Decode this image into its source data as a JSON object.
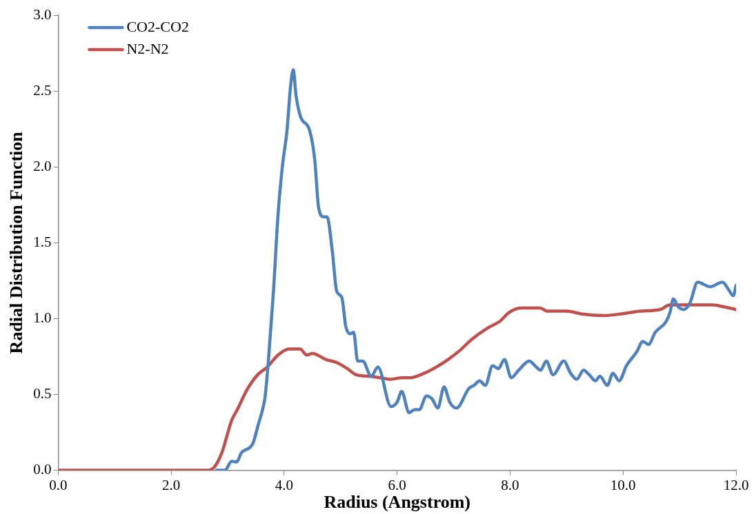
{
  "chart_data": {
    "type": "line",
    "xlabel": "Radius (Angstrom)",
    "ylabel": "Radial Distribution Function",
    "xlim": [
      0,
      12
    ],
    "xticks": [
      {
        "value": 0,
        "label": "0.0"
      },
      {
        "value": 2,
        "label": "2.0"
      },
      {
        "value": 4,
        "label": "4.0"
      },
      {
        "value": 6,
        "label": "6.0"
      },
      {
        "value": 8,
        "label": "8.0"
      },
      {
        "value": 10,
        "label": "10.0"
      },
      {
        "value": 12,
        "label": "12.0"
      }
    ],
    "ylim": [
      0,
      3
    ],
    "yticks": [
      {
        "value": 0,
        "label": "0.0"
      },
      {
        "value": 0.5,
        "label": "0.5"
      },
      {
        "value": 1,
        "label": "1.0"
      },
      {
        "value": 1.5,
        "label": "1.5"
      },
      {
        "value": 2,
        "label": "2.0"
      },
      {
        "value": 2.5,
        "label": "2.5"
      },
      {
        "value": 3,
        "label": "3.0"
      }
    ],
    "grid": false,
    "legend": "top left",
    "marker": "none",
    "line_style": "solid",
    "series": [
      {
        "name": "CO2-CO2",
        "color": "#4f81bd",
        "x": [
          2.8,
          2.95,
          3.07,
          3.16,
          3.24,
          3.39,
          3.45,
          3.54,
          3.61,
          3.66,
          3.72,
          3.81,
          3.89,
          3.97,
          4.05,
          4.11,
          4.16,
          4.21,
          4.29,
          4.45,
          4.54,
          4.61,
          4.7,
          4.76,
          4.85,
          4.93,
          5.02,
          5.09,
          5.17,
          5.23,
          5.3,
          5.39,
          5.54,
          5.66,
          5.89,
          6,
          6.08,
          6.21,
          6.31,
          6.39,
          6.52,
          6.62,
          6.72,
          6.83,
          6.93,
          7.05,
          7.27,
          7.36,
          7.46,
          7.56,
          7.69,
          7.79,
          7.9,
          8.02,
          8.15,
          8.34,
          8.44,
          8.54,
          8.64,
          8.76,
          8.95,
          9.07,
          9.18,
          9.3,
          9.4,
          9.51,
          9.59,
          9.72,
          9.82,
          9.93,
          10.06,
          10.24,
          10.35,
          10.45,
          10.57,
          10.76,
          10.83,
          10.89,
          10.97,
          11.07,
          11.18,
          11.32,
          11.54,
          11.76,
          11.87,
          11.95,
          12
        ],
        "values": [
          0,
          0,
          0.06,
          0.055,
          0.115,
          0.15,
          0.18,
          0.3,
          0.39,
          0.48,
          0.72,
          1.18,
          1.68,
          2.01,
          2.24,
          2.52,
          2.64,
          2.47,
          2.33,
          2.24,
          2.05,
          1.73,
          1.67,
          1.67,
          1.45,
          1.18,
          1.14,
          0.95,
          0.9,
          0.91,
          0.72,
          0.72,
          0.62,
          0.68,
          0.42,
          0.45,
          0.52,
          0.38,
          0.4,
          0.4,
          0.49,
          0.47,
          0.41,
          0.55,
          0.45,
          0.41,
          0.54,
          0.56,
          0.59,
          0.56,
          0.69,
          0.67,
          0.73,
          0.61,
          0.66,
          0.72,
          0.69,
          0.66,
          0.72,
          0.63,
          0.72,
          0.64,
          0.6,
          0.66,
          0.63,
          0.59,
          0.62,
          0.56,
          0.64,
          0.59,
          0.69,
          0.78,
          0.85,
          0.83,
          0.91,
          0.98,
          1.04,
          1.13,
          1.08,
          1.06,
          1.1,
          1.24,
          1.21,
          1.24,
          1.19,
          1.15,
          1.22
        ]
      },
      {
        "name": "N2-N2",
        "color": "#c0504d",
        "x": [
          0,
          2.61,
          2.76,
          2.9,
          3.07,
          3.17,
          3.34,
          3.53,
          3.7,
          3.89,
          4.09,
          4.28,
          4.4,
          4.5,
          4.74,
          4.93,
          5.12,
          5.27,
          5.51,
          5.7,
          5.89,
          6.08,
          6.23,
          6.48,
          6.69,
          6.9,
          7.11,
          7.31,
          7.61,
          7.81,
          7.98,
          8.19,
          8.53,
          8.65,
          8.99,
          9.28,
          9.66,
          9.95,
          10.32,
          10.66,
          10.83,
          11.29,
          11.58,
          11.75,
          12
        ],
        "values": [
          0,
          0,
          0.02,
          0.12,
          0.33,
          0.4,
          0.53,
          0.63,
          0.68,
          0.76,
          0.8,
          0.8,
          0.76,
          0.77,
          0.73,
          0.71,
          0.67,
          0.63,
          0.62,
          0.61,
          0.6,
          0.61,
          0.61,
          0.64,
          0.68,
          0.73,
          0.79,
          0.86,
          0.94,
          0.98,
          1.04,
          1.07,
          1.07,
          1.05,
          1.05,
          1.03,
          1.02,
          1.03,
          1.05,
          1.06,
          1.09,
          1.09,
          1.09,
          1.08,
          1.06
        ]
      }
    ]
  }
}
